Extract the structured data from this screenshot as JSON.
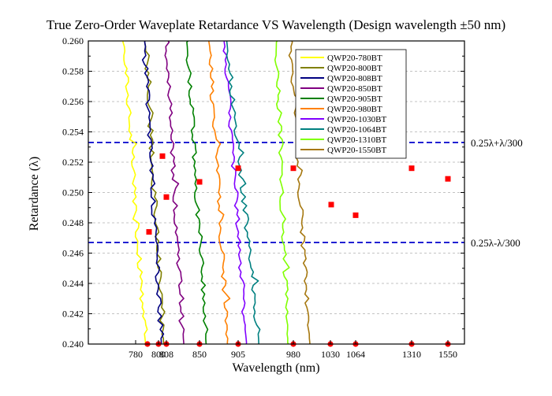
{
  "chart_data": {
    "type": "line",
    "title": "True Zero-Order Waveplate Retardance VS Wavelength (Design wavelength ±50 nm)",
    "xlabel": "Wavelength (nm)",
    "ylabel": "Retardance (λ)",
    "ylim": [
      0.24,
      0.26
    ],
    "y_ticks": [
      "0.240",
      "0.242",
      "0.244",
      "0.246",
      "0.248",
      "0.250",
      "0.252",
      "0.254",
      "0.256",
      "0.258",
      "0.260"
    ],
    "x_ticks": [
      "780",
      "800",
      "808",
      "850",
      "905",
      "980",
      "1030",
      "1064",
      "1310",
      "1550"
    ],
    "grid": "horizontal dashed",
    "legend_position": "top-right",
    "reference_lines": [
      {
        "label": "0.25λ+λ/300",
        "y": 0.2533,
        "color": "#0000cc"
      },
      {
        "label": "0.25λ-λ/300",
        "y": 0.2467,
        "color": "#0000cc"
      }
    ],
    "series": [
      {
        "name": "QWP20-780BT",
        "color": "#ffff00",
        "design_wavelength": "780",
        "design_retardance": 0.2474,
        "x_top": 0.0,
        "x_bottom": 0.275
      },
      {
        "name": "QWP20-800BT",
        "color": "#808000",
        "design_wavelength": "800",
        "design_retardance": 0.2524,
        "x_top": 0.265,
        "x_bottom": 0.51
      },
      {
        "name": "QWP20-808BT",
        "color": "#000080",
        "design_wavelength": "808",
        "design_retardance": 0.2497,
        "x_top": 0.26,
        "x_bottom": 0.48
      },
      {
        "name": "QWP20-850BT",
        "color": "#800080",
        "design_wavelength": "850",
        "design_retardance": 0.2507,
        "x_top": 0.53,
        "x_bottom": 0.76
      },
      {
        "name": "QWP20-905BT",
        "color": "#008000",
        "design_wavelength": "905",
        "design_retardance": 0.2516,
        "x_top": 0.8,
        "x_bottom": 1.05
      },
      {
        "name": "QWP20-980BT",
        "color": "#ff8000",
        "design_wavelength": "980",
        "design_retardance": 0.2516,
        "x_top": 1.08,
        "x_bottom": 1.32
      },
      {
        "name": "QWP20-1030BT",
        "color": "#8000ff",
        "design_wavelength": "1030",
        "design_retardance": 0.2492,
        "x_top": 1.27,
        "x_bottom": 1.56
      },
      {
        "name": "QWP20-1064BT",
        "color": "#008080",
        "design_wavelength": "1064",
        "design_retardance": 0.2485,
        "x_top": 1.3,
        "x_bottom": 1.72
      },
      {
        "name": "QWP20-1310BT",
        "color": "#80ff00",
        "design_wavelength": "1310",
        "design_retardance": 0.2516,
        "x_top": 1.93,
        "x_bottom": 2.08
      },
      {
        "name": "QWP20-1550BT",
        "color": "#a67810",
        "design_wavelength": "1550",
        "design_retardance": 0.2509,
        "x_top": 2.11,
        "x_bottom": 2.36
      }
    ]
  }
}
